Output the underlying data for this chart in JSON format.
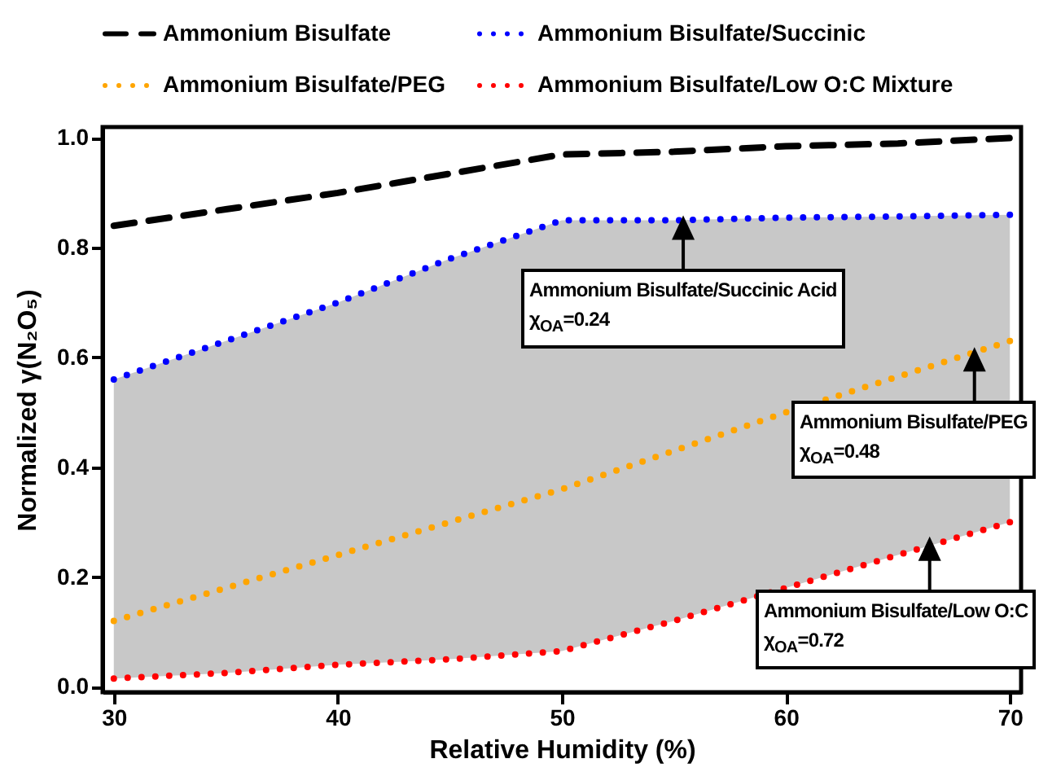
{
  "chart_data": {
    "type": "line",
    "xlabel": "Relative Humidity (%)",
    "ylabel": "Normalized γ(N₂O₅)",
    "x": [
      30,
      35,
      40,
      45,
      50,
      55,
      60,
      65,
      70
    ],
    "series": [
      {
        "name": "Ammonium Bisulfate",
        "color": "#000000",
        "line_style": "dashed",
        "values": [
          0.84,
          0.87,
          0.9,
          0.935,
          0.97,
          0.975,
          0.985,
          0.99,
          1.0
        ]
      },
      {
        "name": "Ammonium Bisulfate/Succinic",
        "color": "#0000ff",
        "line_style": "dotted",
        "values": [
          0.56,
          0.63,
          0.7,
          0.78,
          0.85,
          0.85,
          0.855,
          0.857,
          0.86
        ]
      },
      {
        "name": "Ammonium Bisulfate/PEG",
        "color": "#ffa500",
        "line_style": "dotted",
        "values": [
          0.12,
          0.18,
          0.24,
          0.3,
          0.36,
          0.43,
          0.5,
          0.565,
          0.63
        ],
        "lower": [
          0.015,
          0.025,
          0.04,
          0.05,
          0.065,
          0.12,
          0.18,
          0.24,
          0.3
        ],
        "upper": [
          0.56,
          0.63,
          0.7,
          0.78,
          0.85,
          0.85,
          0.855,
          0.857,
          0.86
        ]
      },
      {
        "name": "Ammonium Bisulfate/Low O:C Mixture",
        "color": "#ff0000",
        "line_style": "dotted",
        "values": [
          0.015,
          0.025,
          0.04,
          0.05,
          0.065,
          0.12,
          0.18,
          0.24,
          0.3
        ]
      }
    ],
    "xlim": [
      29.5,
      70.5
    ],
    "xticks": [
      30,
      40,
      50,
      60,
      70
    ],
    "ylim": [
      -0.01,
      1.02
    ],
    "yticks": [
      {
        "value": 0,
        "label": "0.0"
      },
      {
        "value": 0.2,
        "label": "0.2"
      },
      {
        "value": 0.4,
        "label": "0.4"
      },
      {
        "value": 0.6,
        "label": "0.6"
      },
      {
        "value": 0.8,
        "label": "0.8"
      },
      {
        "value": 1,
        "label": "1.0"
      }
    ],
    "grid": false,
    "legend": "top",
    "annotations": [
      {
        "text": "Ammonium Bisulfate/Succinic Acid\nχ$_{OA}$=0.24",
        "x": 56,
        "y": 0.85
      },
      {
        "text": "Ammonium Bisulfate/PEG\nχ$_{OA}$=0.48",
        "x": 69,
        "y": 0.61
      },
      {
        "text": "Ammonium Bisulfate/Low O:C\nχ$_{OA}$=0.72",
        "x": 67,
        "y": 0.265
      }
    ]
  }
}
